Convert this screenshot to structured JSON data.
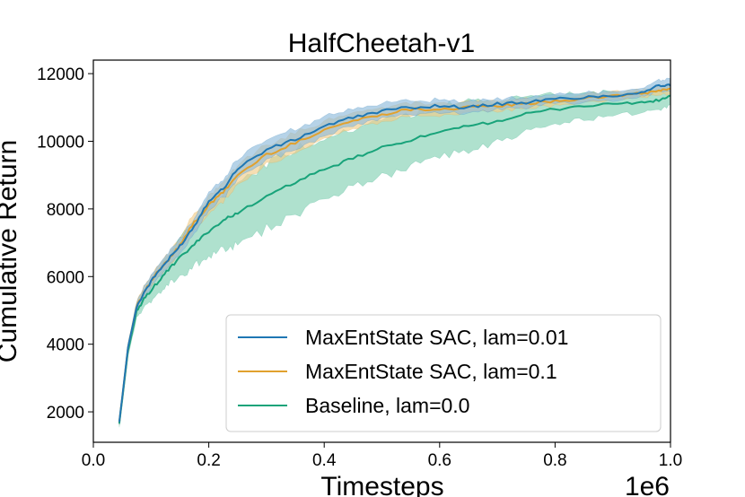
{
  "chart_data": {
    "type": "line",
    "title": "HalfCheetah-v1",
    "xlabel": "Timesteps",
    "ylabel": "Cumulative Return",
    "x_offset_label": "1e6",
    "xlim": [
      0.0,
      1.0
    ],
    "ylim": [
      1100,
      12400
    ],
    "x_ticks": [
      0.0,
      0.2,
      0.4,
      0.6,
      0.8,
      1.0
    ],
    "x_tick_labels": [
      "0.0",
      "0.2",
      "0.4",
      "0.6",
      "0.8",
      "1.0"
    ],
    "y_ticks": [
      2000,
      4000,
      6000,
      8000,
      10000,
      12000
    ],
    "y_tick_labels": [
      "2000",
      "4000",
      "6000",
      "8000",
      "10000",
      "12000"
    ],
    "grid": false,
    "legend_position": "lower-right",
    "x": [
      0.045,
      0.06,
      0.075,
      0.09,
      0.11,
      0.13,
      0.15,
      0.175,
      0.2,
      0.225,
      0.25,
      0.3,
      0.35,
      0.4,
      0.45,
      0.5,
      0.55,
      0.6,
      0.65,
      0.7,
      0.75,
      0.8,
      0.85,
      0.9,
      0.95,
      0.98,
      1.0
    ],
    "series": [
      {
        "name": "MaxEntState SAC, lam=0.01",
        "color": "#1f77b4",
        "fill": "#8fbbdc",
        "values": [
          1700,
          3900,
          5100,
          5600,
          6100,
          6500,
          6900,
          7500,
          8250,
          8600,
          9200,
          9750,
          10050,
          10450,
          10700,
          10900,
          11000,
          11050,
          11000,
          11100,
          11150,
          11250,
          11300,
          11350,
          11450,
          11650,
          11650
        ],
        "band": [
          100,
          120,
          150,
          170,
          180,
          200,
          220,
          240,
          260,
          280,
          300,
          320,
          300,
          280,
          250,
          230,
          200,
          180,
          170,
          160,
          150,
          140,
          130,
          130,
          130,
          160,
          200
        ]
      },
      {
        "name": "MaxEntState SAC, lam=0.1",
        "color": "#e1a12e",
        "fill": "#f1cd8a",
        "values": [
          1700,
          3900,
          5100,
          5600,
          6100,
          6500,
          6950,
          7600,
          8100,
          8500,
          9000,
          9600,
          9950,
          10350,
          10600,
          10800,
          10950,
          10950,
          11000,
          11050,
          11100,
          11200,
          11250,
          11350,
          11400,
          11500,
          11550
        ],
        "band": [
          100,
          120,
          150,
          170,
          180,
          200,
          220,
          240,
          260,
          280,
          300,
          300,
          280,
          260,
          240,
          220,
          200,
          180,
          160,
          150,
          140,
          130,
          120,
          120,
          120,
          130,
          150
        ]
      },
      {
        "name": "Baseline, lam=0.0",
        "color": "#18a37a",
        "fill": "#94d7bd",
        "values": [
          1650,
          3800,
          4950,
          5400,
          5800,
          6200,
          6550,
          6950,
          7350,
          7650,
          7900,
          8350,
          8800,
          9150,
          9500,
          9800,
          10050,
          10250,
          10450,
          10600,
          10800,
          10950,
          11050,
          11100,
          11150,
          11200,
          11350
        ],
        "band": [
          100,
          150,
          200,
          250,
          350,
          450,
          550,
          650,
          750,
          850,
          900,
          950,
          950,
          950,
          900,
          850,
          800,
          750,
          700,
          600,
          500,
          450,
          400,
          350,
          300,
          280,
          280
        ]
      }
    ]
  }
}
